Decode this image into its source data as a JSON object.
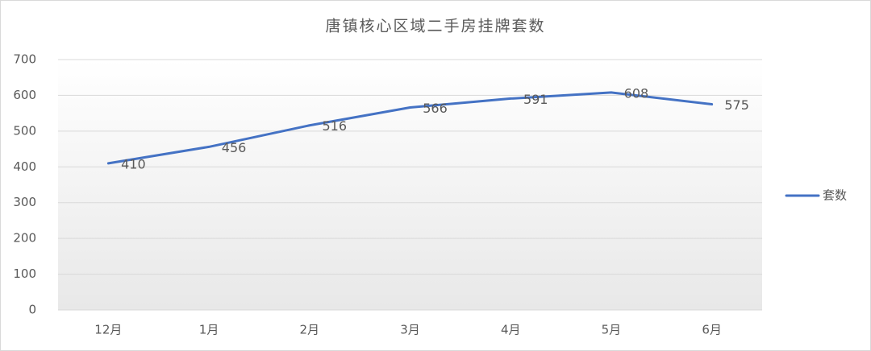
{
  "chart_data": {
    "type": "line",
    "title": "唐镇核心区域二手房挂牌套数",
    "categories": [
      "12月",
      "1月",
      "2月",
      "3月",
      "4月",
      "5月",
      "6月"
    ],
    "series": [
      {
        "name": "套数",
        "color": "#4472c4",
        "values": [
          410,
          456,
          516,
          566,
          591,
          608,
          575
        ]
      }
    ],
    "ylim": [
      0,
      700
    ],
    "yticks": [
      0,
      100,
      200,
      300,
      400,
      500,
      600,
      700
    ],
    "grid": true,
    "legend": "right"
  }
}
